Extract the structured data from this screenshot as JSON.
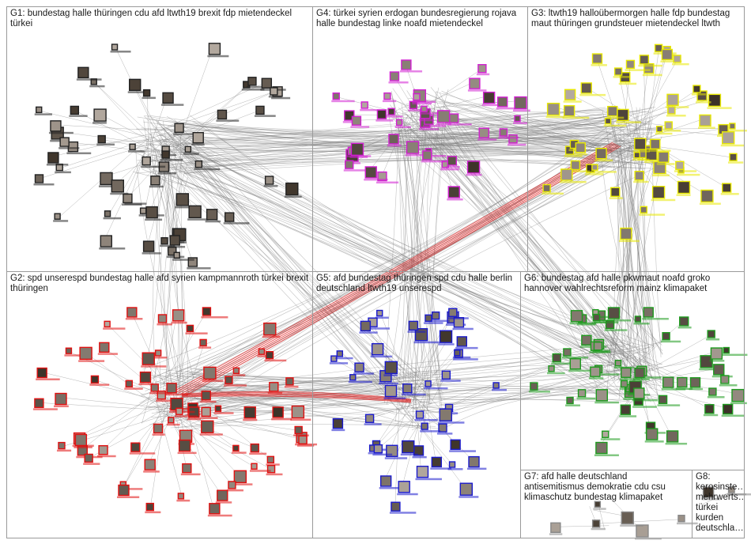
{
  "groups": [
    {
      "id": "G1",
      "title": "G1: bundestag halle thüringen cdu afd ltwth19 brexit fdp mietendeckel türkei",
      "color": "#222222",
      "nodes": 58
    },
    {
      "id": "G4",
      "title": "G4: türkei syrien erdogan bundesregierung rojava halle bundestag linke noafd mietendeckel",
      "color": "#d21fd2",
      "nodes": 42
    },
    {
      "id": "G3",
      "title": "G3: ltwth19 halloübermorgen halle fdp bundestag maut thüringen grundsteuer mietendeckel ltwth",
      "color": "#e8e800",
      "nodes": 55
    },
    {
      "id": "G2",
      "title": "G2: spd unserespd bundestag halle afd syrien kampmannroth türkei brexit thüringen",
      "color": "#e01010",
      "nodes": 70
    },
    {
      "id": "G5",
      "title": "G5: afd bundestag thüringen spd cdu halle berlin deutschland ltwth19 unserespd",
      "color": "#1a1acc",
      "nodes": 48
    },
    {
      "id": "G6",
      "title": "G6: bundestag afd halle pkwmaut noafd groko hannover wahlrechtsreform mainz klimapaket",
      "color": "#1e9a1e",
      "nodes": 55
    },
    {
      "id": "G7",
      "title": "G7: afd halle deutschland antisemitismus demokratie cdu csu klimaschutz bundestag klimapaket",
      "color": "#888888",
      "nodes": 6
    },
    {
      "id": "G8",
      "title": "G8: kerosinste… mehrwerts… türkei kurden deutschla…",
      "color": "#888888",
      "nodes": 3
    }
  ],
  "colors": {
    "edge": "#7a7a7a",
    "edge_highlight": "#e02020",
    "panel_border": "#9a9a9a"
  }
}
